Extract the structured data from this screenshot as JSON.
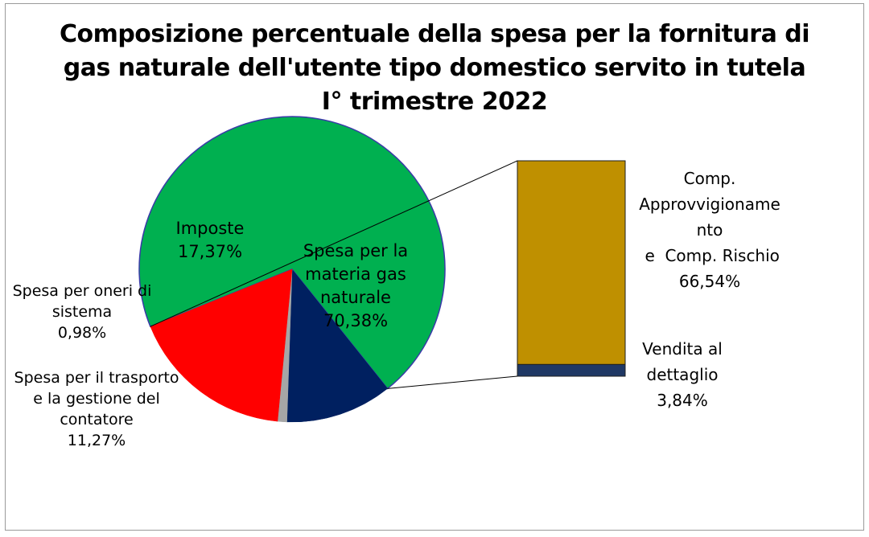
{
  "chart_data": [
    {
      "type": "pie",
      "title": "Composizione percentuale della spesa per la fornitura di gas naturale dell'utente tipo domestico servito in tutela I° trimestre 2022",
      "title_lines": [
        "Composizione percentuale della spesa per la fornitura di",
        "gas naturale dell'utente tipo domestico servito in tutela",
        "I° trimestre 2022"
      ],
      "slices": [
        {
          "label_lines": [
            "Spesa per la",
            "materia gas",
            "naturale"
          ],
          "value": 70.38,
          "value_label": "70,38%",
          "color": "#00B050"
        },
        {
          "label_lines": [
            "Spesa per il trasporto",
            "e la gestione del",
            "contatore"
          ],
          "value": 11.27,
          "value_label": "11,27%",
          "color": "#002060"
        },
        {
          "label_lines": [
            "Spesa per oneri di",
            "sistema"
          ],
          "value": 0.98,
          "value_label": "0,98%",
          "color": "#A6A6A6"
        },
        {
          "label_lines": [
            "Imposte"
          ],
          "value": 17.37,
          "value_label": "17,37%",
          "color": "#FF0000"
        }
      ],
      "exploded_slice": "Spesa per la materia gas naturale"
    },
    {
      "type": "bar",
      "stacked": true,
      "segments": [
        {
          "label_lines": [
            "Comp.",
            "Approvvigioname",
            "nto",
            " e  Comp. Rischio"
          ],
          "value": 66.54,
          "value_label": "66,54%",
          "color": "#BF9000"
        },
        {
          "label_lines": [
            "Vendita al",
            "dettaglio"
          ],
          "value": 3.84,
          "value_label": "3,84%",
          "color": "#1F3864"
        }
      ]
    }
  ]
}
